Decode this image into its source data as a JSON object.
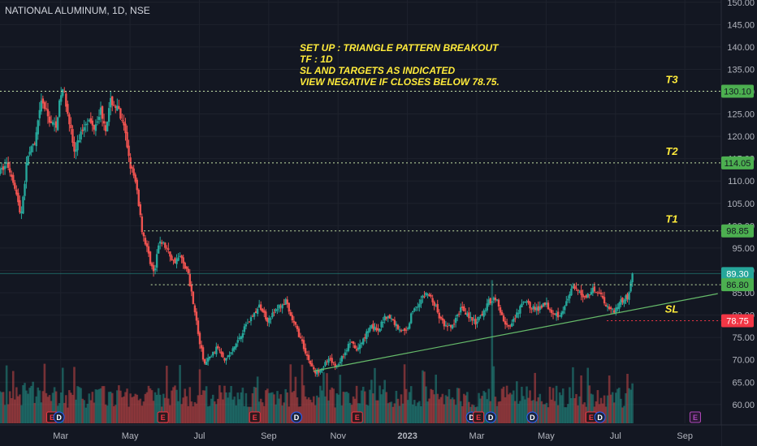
{
  "header": {
    "symbol": "NATIONAL ALUMINUM, 1D, NSE"
  },
  "colors": {
    "background": "#131722",
    "grid": "#1e222d",
    "up": "#26a69a",
    "down": "#ef5350",
    "text": "#b2b5be",
    "annotation": "#ffeb3b",
    "level_line": "#c5e1a5",
    "label_green": "#4caf50",
    "label_teal": "#26a69a",
    "label_red": "#f23645",
    "trendline": "#66bb6a",
    "event_marker": "#2962ff",
    "earnings_marker": "#f23645",
    "future_marker": "#ab47bc"
  },
  "annotation": {
    "lines": [
      "SET UP : TRIANGLE PATTERN BREAKOUT",
      "TF : 1D",
      "SL AND TARGETS AS INDICATED",
      "VIEW NEGATIVE IF CLOSES BELOW 78.75."
    ]
  },
  "levels": [
    {
      "name": "T3",
      "label": "T3",
      "price_label": "130.10",
      "value": 130.1,
      "style": "green"
    },
    {
      "name": "T2",
      "label": "T2",
      "price_label": "114.05",
      "value": 114.05,
      "style": "green"
    },
    {
      "name": "T1",
      "label": "T1",
      "price_label": "98.85",
      "value": 98.85,
      "style": "green"
    },
    {
      "name": "last",
      "label": "",
      "price_label": "89.30",
      "value": 89.3,
      "style": "teal"
    },
    {
      "name": "breakout",
      "label": "",
      "price_label": "86.80",
      "value": 86.8,
      "style": "green"
    },
    {
      "name": "SL",
      "label": "SL",
      "price_label": "78.75",
      "value": 78.75,
      "style": "red"
    }
  ],
  "event_markers": [
    {
      "type": "E",
      "month_pos": -0.25
    },
    {
      "type": "D",
      "month_pos": -0.05
    },
    {
      "type": "E",
      "month_pos": 2.95
    },
    {
      "type": "E",
      "month_pos": 5.6
    },
    {
      "type": "D",
      "month_pos": 6.8
    },
    {
      "type": "E",
      "month_pos": 8.55
    },
    {
      "type": "D",
      "month_pos": 11.85
    },
    {
      "type": "E",
      "month_pos": 12.05
    },
    {
      "type": "D",
      "month_pos": 12.4
    },
    {
      "type": "D",
      "month_pos": 13.6
    },
    {
      "type": "E",
      "month_pos": 15.3
    },
    {
      "type": "D",
      "month_pos": 15.55
    },
    {
      "type": "E",
      "month_pos": 18.3
    }
  ],
  "chart_data": {
    "type": "candlestick",
    "symbol": "NATIONAL ALUMINUM",
    "timeframe": "1D",
    "exchange": "NSE",
    "x_ticks": [
      "Mar",
      "May",
      "Jul",
      "Sep",
      "Nov",
      "2023",
      "Mar",
      "May",
      "Jul",
      "Sep"
    ],
    "y_ticks": [
      60,
      65,
      70,
      75,
      80,
      85,
      90,
      95,
      100,
      105,
      110,
      115,
      120,
      125,
      130,
      135,
      140,
      145,
      150
    ],
    "y_tick_labels": [
      "60.00",
      "65.00",
      "70.00",
      "75.00",
      "80.00",
      "85.00",
      "90.00",
      "95.00",
      "100.00",
      "105.00",
      "110.00",
      "115.00",
      "120.00",
      "125.00",
      "130.00",
      "135.00",
      "140.00",
      "145.00",
      "150.00"
    ],
    "ylim": [
      55.8,
      150.5
    ],
    "xlim_months": [
      -1.75,
      19.05
    ],
    "price_path": [
      [
        -1.75,
        112
      ],
      [
        -1.55,
        114
      ],
      [
        -1.35,
        110
      ],
      [
        -1.15,
        102
      ],
      [
        -0.95,
        116
      ],
      [
        -0.75,
        118
      ],
      [
        -0.55,
        128
      ],
      [
        -0.35,
        124
      ],
      [
        -0.15,
        122
      ],
      [
        0.05,
        131
      ],
      [
        0.2,
        126
      ],
      [
        0.4,
        116
      ],
      [
        0.55,
        120
      ],
      [
        0.75,
        124
      ],
      [
        0.95,
        122
      ],
      [
        1.15,
        126
      ],
      [
        1.3,
        122
      ],
      [
        1.45,
        128
      ],
      [
        1.65,
        126
      ],
      [
        1.85,
        121
      ],
      [
        2.0,
        114
      ],
      [
        2.2,
        108
      ],
      [
        2.35,
        99
      ],
      [
        2.55,
        93
      ],
      [
        2.7,
        89
      ],
      [
        2.85,
        97
      ],
      [
        3.05,
        95
      ],
      [
        3.25,
        92
      ],
      [
        3.45,
        93
      ],
      [
        3.65,
        90
      ],
      [
        3.85,
        82
      ],
      [
        4.0,
        74
      ],
      [
        4.15,
        69
      ],
      [
        4.35,
        71
      ],
      [
        4.55,
        73
      ],
      [
        4.75,
        70
      ],
      [
        4.95,
        72
      ],
      [
        5.15,
        75
      ],
      [
        5.35,
        78
      ],
      [
        5.55,
        80
      ],
      [
        5.75,
        82
      ],
      [
        5.95,
        79
      ],
      [
        6.1,
        80
      ],
      [
        6.3,
        82
      ],
      [
        6.5,
        83
      ],
      [
        6.6,
        80
      ],
      [
        6.8,
        77
      ],
      [
        6.95,
        74
      ],
      [
        7.15,
        70
      ],
      [
        7.35,
        67
      ],
      [
        7.55,
        68.5
      ],
      [
        7.75,
        70
      ],
      [
        7.95,
        68.5
      ],
      [
        8.15,
        71
      ],
      [
        8.35,
        74
      ],
      [
        8.55,
        72
      ],
      [
        8.75,
        75
      ],
      [
        8.95,
        78
      ],
      [
        9.15,
        76
      ],
      [
        9.35,
        80
      ],
      [
        9.55,
        79
      ],
      [
        9.75,
        77
      ],
      [
        9.95,
        76
      ],
      [
        10.15,
        81
      ],
      [
        10.35,
        83
      ],
      [
        10.55,
        85
      ],
      [
        10.75,
        83
      ],
      [
        10.95,
        79
      ],
      [
        11.15,
        77
      ],
      [
        11.35,
        78
      ],
      [
        11.55,
        82
      ],
      [
        11.75,
        80
      ],
      [
        11.95,
        78
      ],
      [
        12.15,
        80
      ],
      [
        12.35,
        83
      ],
      [
        12.55,
        84
      ],
      [
        12.75,
        79
      ],
      [
        12.95,
        77
      ],
      [
        13.15,
        80
      ],
      [
        13.35,
        83
      ],
      [
        13.55,
        82
      ],
      [
        13.75,
        81
      ],
      [
        13.95,
        83
      ],
      [
        14.15,
        81
      ],
      [
        14.35,
        80
      ],
      [
        14.55,
        82
      ],
      [
        14.75,
        86
      ],
      [
        14.95,
        85
      ],
      [
        15.15,
        84
      ],
      [
        15.35,
        86
      ],
      [
        15.55,
        85
      ],
      [
        15.75,
        82
      ],
      [
        15.95,
        81
      ],
      [
        16.15,
        83
      ],
      [
        16.35,
        84
      ],
      [
        16.5,
        89.3
      ]
    ],
    "trendline": [
      [
        7.3,
        67.5
      ],
      [
        18.95,
        84.8
      ]
    ],
    "volume_spikes": [
      {
        "month_pos": 12.45,
        "height": 16.5
      },
      {
        "month_pos": 16.35,
        "height": 5.7
      },
      {
        "month_pos": 16.5,
        "height": 4.6
      },
      {
        "month_pos": 10.05,
        "height": 3.6
      }
    ],
    "last_price": 89.3
  }
}
